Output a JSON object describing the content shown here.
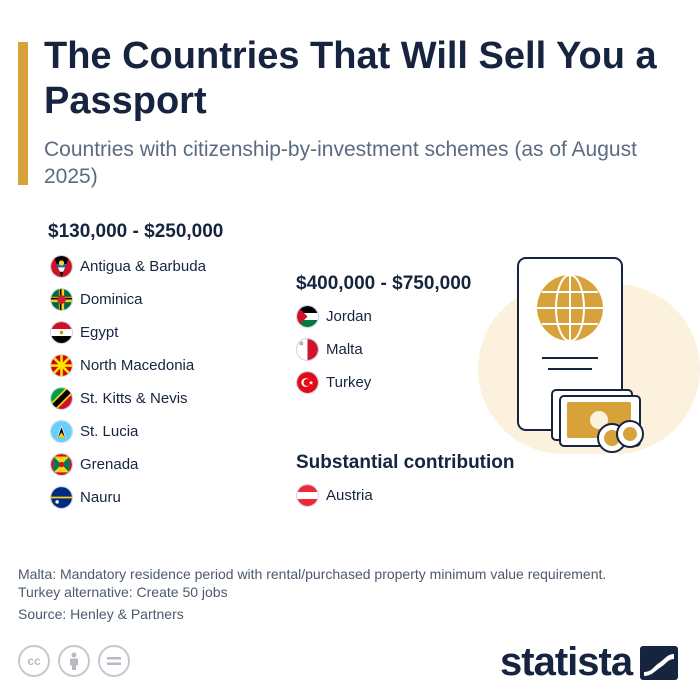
{
  "header": {
    "title": "The Countries That Will Sell You a Passport",
    "subtitle": "Countries with citizenship-by-investment schemes (as of August 2025)"
  },
  "groups": [
    {
      "heading": "$130,000 - $250,000",
      "countries": [
        "Antigua & Barbuda",
        "Dominica",
        "Egypt",
        "North Macedonia",
        "St. Kitts & Nevis",
        "St. Lucia",
        "Grenada",
        "Nauru"
      ]
    },
    {
      "heading": "$400,000 - $750,000",
      "countries": [
        "Jordan",
        "Malta",
        "Turkey"
      ]
    },
    {
      "heading": "Substantial contribution",
      "countries": [
        "Austria"
      ]
    }
  ],
  "notes": {
    "malta": "Malta: Mandatory residence period with rental/purchased property minimum value requirement.",
    "turkey": "Turkey alternative: Create 50 jobs",
    "source": "Source: Henley & Partners"
  },
  "footer": {
    "brand": "statista",
    "license_icons": [
      "cc-icon",
      "by-icon",
      "nd-icon"
    ]
  },
  "colors": {
    "accent": "#d8a23a",
    "navy": "#16243f",
    "illustration_bg": "#fbf1dc"
  }
}
